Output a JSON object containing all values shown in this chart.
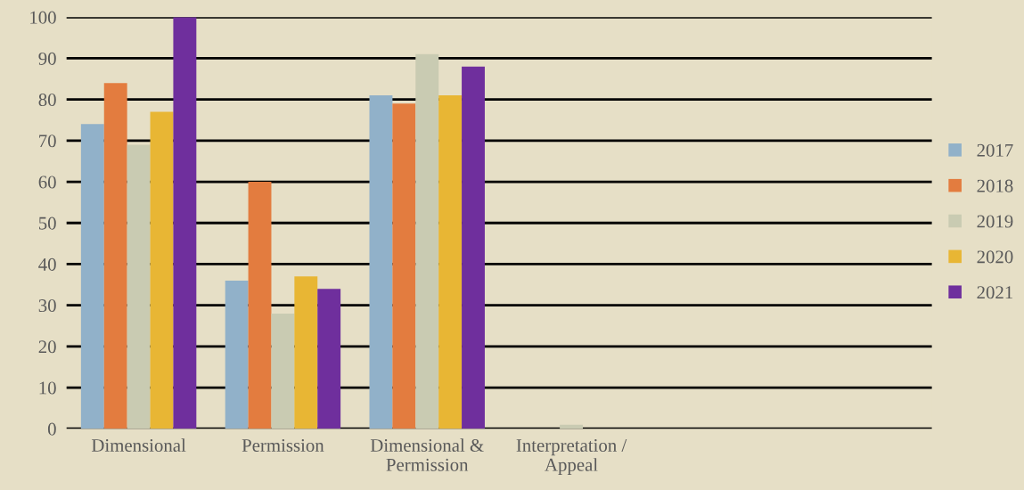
{
  "chart_data": {
    "type": "bar",
    "categories": [
      "Dimensional",
      "Permission",
      "Dimensional &\nPermission",
      "Interpretation /\nAppeal"
    ],
    "series": [
      {
        "name": "2017",
        "color": "#91b1c9",
        "values": [
          74,
          36,
          81,
          0
        ]
      },
      {
        "name": "2018",
        "color": "#e37c3f",
        "values": [
          84,
          60,
          79,
          0
        ]
      },
      {
        "name": "2019",
        "color": "#c9cbb2",
        "values": [
          69,
          28,
          91,
          1
        ]
      },
      {
        "name": "2020",
        "color": "#e8b634",
        "values": [
          77,
          37,
          81,
          0
        ]
      },
      {
        "name": "2021",
        "color": "#6f2f9d",
        "values": [
          100,
          34,
          88,
          0
        ]
      }
    ],
    "ylim": [
      0,
      100
    ],
    "yticks": [
      0,
      10,
      20,
      30,
      40,
      50,
      60,
      70,
      80,
      90,
      100
    ],
    "grid": "y",
    "legend": "right"
  }
}
